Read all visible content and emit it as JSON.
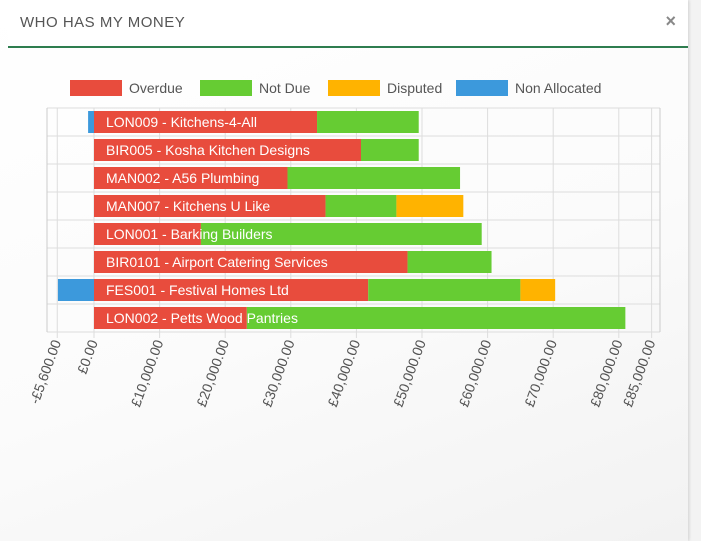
{
  "panel": {
    "title": "WHO HAS MY MONEY",
    "close_glyph": "×"
  },
  "colors": {
    "overdue": "#e84c3d",
    "not_due": "#66cc33",
    "disputed": "#ffb300",
    "non_allocated": "#3c99dc"
  },
  "chart_data": {
    "type": "bar",
    "orientation": "horizontal",
    "stacked": true,
    "legend_position": "top",
    "grid": true,
    "categories": [
      "LON009 - Kitchens-4-All",
      "BIR005 - Kosha Kitchen Designs",
      "MAN002 - A56 Plumbing",
      "MAN007 - Kitchens U Like",
      "LON001 - Barking Builders",
      "BIR0101 - Airport Catering Services",
      "FES001 - Festival Homes Ltd",
      "LON002 - Petts Wood Pantries"
    ],
    "series": [
      {
        "name": "Non Allocated",
        "key": "non_allocated",
        "values": [
          -900,
          0,
          0,
          0,
          0,
          0,
          -5500,
          0
        ]
      },
      {
        "name": "Overdue",
        "key": "overdue",
        "values": [
          34000,
          40700,
          29500,
          35300,
          16300,
          47800,
          41800,
          23300
        ]
      },
      {
        "name": "Not Due",
        "key": "not_due",
        "values": [
          15500,
          8800,
          26300,
          10800,
          42800,
          12800,
          23200,
          57700
        ]
      },
      {
        "name": "Disputed",
        "key": "disputed",
        "values": [
          0,
          0,
          0,
          10200,
          0,
          0,
          5300,
          0
        ]
      }
    ],
    "legend_order": [
      "Overdue",
      "Not Due",
      "Disputed",
      "Non Allocated"
    ],
    "x_ticks": [
      {
        "value": -5600,
        "label": "-£5,600.00"
      },
      {
        "value": 0,
        "label": "£0.00"
      },
      {
        "value": 10000,
        "label": "£10,000.00"
      },
      {
        "value": 20000,
        "label": "£20,000.00"
      },
      {
        "value": 30000,
        "label": "£30,000.00"
      },
      {
        "value": 40000,
        "label": "£40,000.00"
      },
      {
        "value": 50000,
        "label": "£50,000.00"
      },
      {
        "value": 60000,
        "label": "£60,000.00"
      },
      {
        "value": 70000,
        "label": "£70,000.00"
      },
      {
        "value": 80000,
        "label": "£80,000.00"
      },
      {
        "value": 85000,
        "label": "£85,000.00"
      }
    ],
    "xlim": [
      -5600,
      85000
    ]
  }
}
